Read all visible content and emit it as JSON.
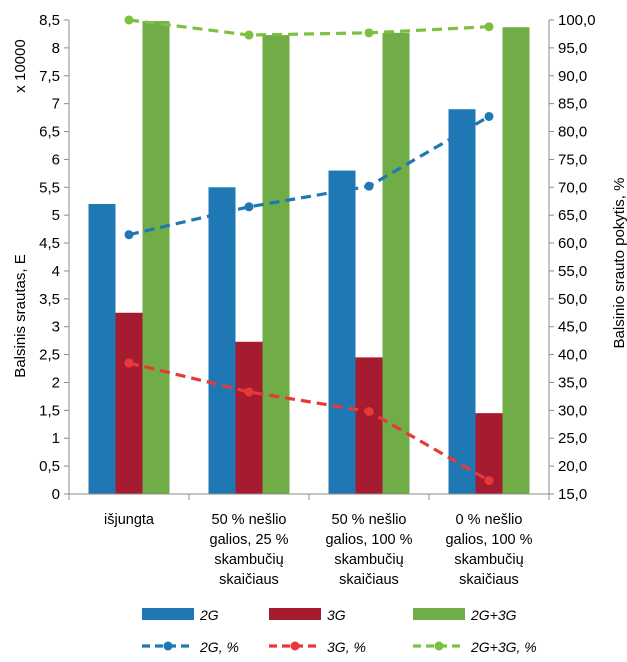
{
  "chart_data": {
    "type": "bar",
    "categories": [
      [
        "išjungta"
      ],
      [
        "50 % nešlio",
        "galios, 25 %",
        "skambučių",
        "skaičiaus"
      ],
      [
        "50 % nešlio",
        "galios, 100  %",
        "skambučių",
        "skaičiaus"
      ],
      [
        "0 % nešlio",
        "galios, 100  %",
        "skambučių",
        "skaičiaus"
      ]
    ],
    "series": [
      {
        "name": "2G",
        "type": "bar",
        "axis": "left",
        "color": "#1f77b4",
        "values": [
          5.2,
          5.5,
          5.8,
          6.9
        ]
      },
      {
        "name": "3G",
        "type": "bar",
        "axis": "left",
        "color": "#a51c30",
        "values": [
          3.25,
          2.73,
          2.45,
          1.45
        ]
      },
      {
        "name": "2G+3G",
        "type": "bar",
        "axis": "left",
        "color": "#70ad47",
        "values": [
          8.48,
          8.23,
          8.27,
          8.37
        ]
      },
      {
        "name": "2G, %",
        "type": "line",
        "axis": "right",
        "color": "#1f77b4",
        "values": [
          61.5,
          66.5,
          70.2,
          82.7
        ]
      },
      {
        "name": "3G, %",
        "type": "line",
        "axis": "right",
        "color": "#e8393a",
        "values": [
          38.5,
          33.3,
          29.8,
          17.4
        ]
      },
      {
        "name": "2G+3G, %",
        "type": "line",
        "axis": "right",
        "color": "#7bc043",
        "values": [
          100.0,
          97.3,
          97.7,
          98.8
        ]
      }
    ],
    "y_left": {
      "label": "Balsinis srautas, E",
      "multiplier": "x 10000",
      "ylim": [
        0,
        8.5
      ],
      "ticks": [
        "0",
        "0,5",
        "1",
        "1,5",
        "2",
        "2,5",
        "3",
        "3,5",
        "4",
        "4,5",
        "5",
        "5,5",
        "6",
        "6,5",
        "7",
        "7,5",
        "8",
        "8,5"
      ]
    },
    "y_right": {
      "label": "Balsinio srauto pokytis, %",
      "ylim": [
        15,
        100
      ],
      "ticks": [
        "15,0",
        "20,0",
        "25,0",
        "30,0",
        "35,0",
        "40,0",
        "45,0",
        "50,0",
        "55,0",
        "60,0",
        "65,0",
        "70,0",
        "75,0",
        "80,0",
        "85,0",
        "90,0",
        "95,0",
        "100,0"
      ]
    },
    "legend": {
      "position": "bottom",
      "items": [
        {
          "base": "2G",
          "suffix": ""
        },
        {
          "base": "3G",
          "suffix": ""
        },
        {
          "base": "2G+3G",
          "suffix": ""
        },
        {
          "base": "2G",
          "suffix": ", %"
        },
        {
          "base": "3G",
          "suffix": ", %"
        },
        {
          "base": "2G+3G",
          "suffix": ", %"
        }
      ]
    },
    "grid": false
  }
}
